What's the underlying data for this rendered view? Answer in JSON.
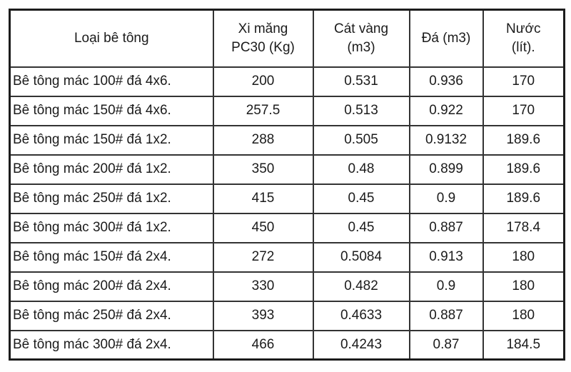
{
  "chart_data": {
    "type": "table",
    "title": "",
    "columns": [
      {
        "label": "Loại bê tông",
        "lines": [
          "Loại bê tông"
        ]
      },
      {
        "label": "Xi măng PC30 (Kg)",
        "lines": [
          "Xi măng",
          "PC30 (Kg)"
        ]
      },
      {
        "label": "Cát vàng (m3)",
        "lines": [
          "Cát vàng",
          "(m3)"
        ]
      },
      {
        "label": "Đá (m3)",
        "lines": [
          "Đá (m3)"
        ]
      },
      {
        "label": "Nước (lít).",
        "lines": [
          "Nước",
          "(lít)."
        ]
      }
    ],
    "rows": [
      [
        "Bê tông mác 100# đá 4x6.",
        "200",
        "0.531",
        "0.936",
        "170"
      ],
      [
        "Bê tông mác 150# đá 4x6.",
        "257.5",
        "0.513",
        "0.922",
        "170"
      ],
      [
        "Bê tông mác 150# đá 1x2.",
        "288",
        "0.505",
        "0.9132",
        "189.6"
      ],
      [
        "Bê tông mác 200# đá 1x2.",
        "350",
        "0.48",
        "0.899",
        "189.6"
      ],
      [
        "Bê tông mác 250# đá 1x2.",
        "415",
        "0.45",
        "0.9",
        "189.6"
      ],
      [
        "Bê tông mác 300# đá 1x2.",
        "450",
        "0.45",
        "0.887",
        "178.4"
      ],
      [
        "Bê tông mác 150# đá 2x4.",
        "272",
        "0.5084",
        "0.913",
        "180"
      ],
      [
        "Bê tông mác 200# đá 2x4.",
        "330",
        "0.482",
        "0.9",
        "180"
      ],
      [
        "Bê tông mác 250# đá 2x4.",
        "393",
        "0.4633",
        "0.887",
        "180"
      ],
      [
        "Bê tông mác 300# đá 2x4.",
        "466",
        "0.4243",
        "0.87",
        "184.5"
      ]
    ]
  },
  "colors": {
    "outer_border": "#1c1c1c",
    "inner_border": "#333333",
    "text": "#1b1b1b",
    "background": "#ffffff"
  }
}
